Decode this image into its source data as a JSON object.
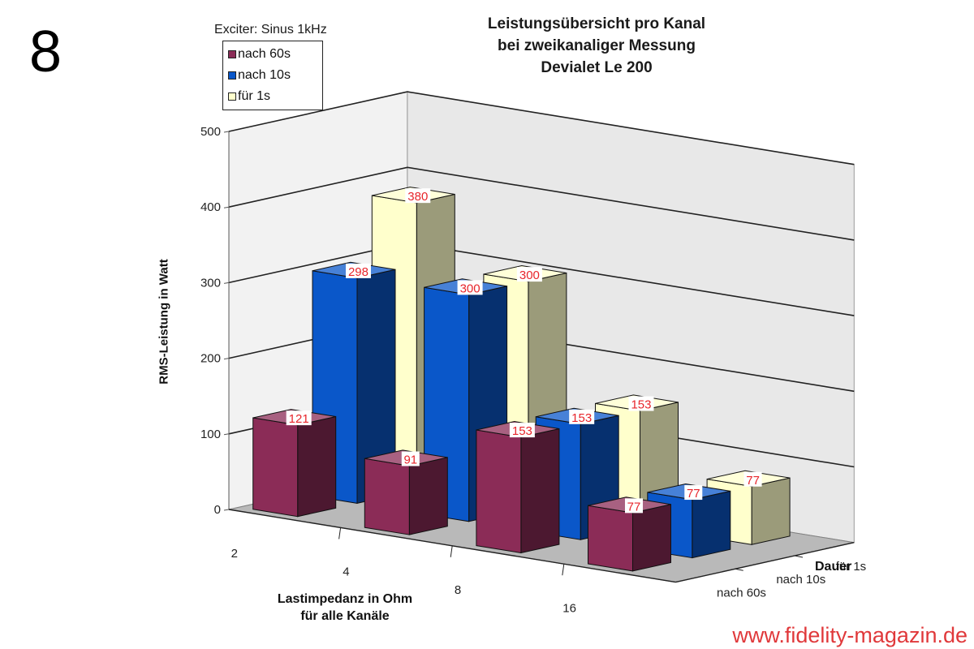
{
  "figure_number": "8",
  "watermark": "www.fidelity-magazin.de",
  "chart_data": {
    "type": "bar",
    "title": [
      "Leistungsübersicht pro Kanal",
      "bei zweikanaliger Messung",
      "Devialet Le 200"
    ],
    "legend_title": "Exciter: Sinus 1kHz",
    "legend_position": "top-left",
    "categories": [
      "2",
      "4",
      "8",
      "16"
    ],
    "xlabel": [
      "Lastimpedanz in Ohm",
      "für alle Kanäle"
    ],
    "ylabel": "RMS-Leistung in Watt",
    "zlabel": "Dauer",
    "z_categories": [
      "nach 60s",
      "nach 10s",
      "für 1s"
    ],
    "yticks": [
      "0",
      "100",
      "200",
      "300",
      "400",
      "500"
    ],
    "ylim": [
      0,
      500
    ],
    "grid": true,
    "series": [
      {
        "name": "nach 60s",
        "color": "#8b2c57",
        "values": [
          121,
          91,
          153,
          77
        ]
      },
      {
        "name": "nach 10s",
        "color": "#0a57c9",
        "values": [
          298,
          300,
          153,
          77
        ]
      },
      {
        "name": "für 1s",
        "color": "#ffffcc",
        "values": [
          380,
          300,
          153,
          77
        ]
      }
    ],
    "label_color": "#e8252b"
  }
}
